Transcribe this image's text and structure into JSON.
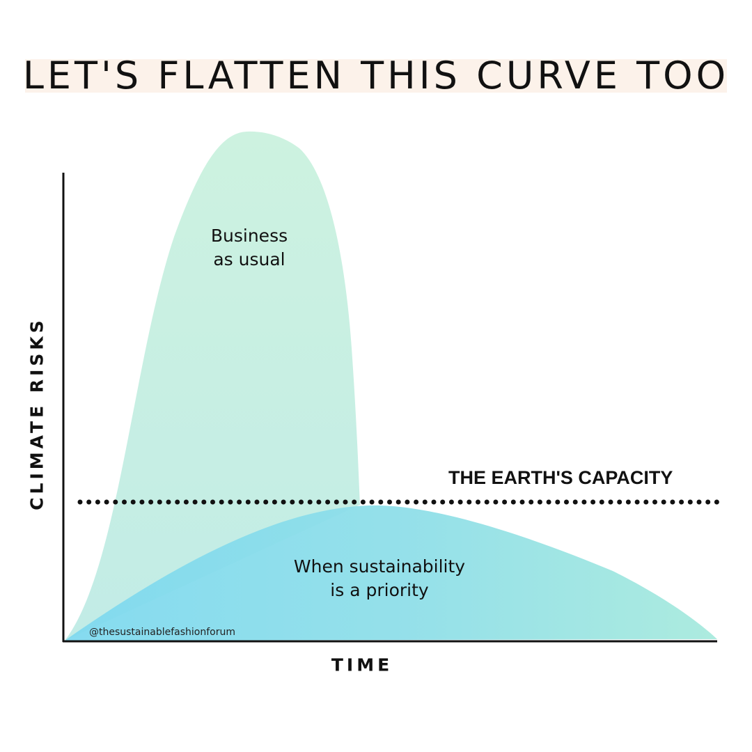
{
  "title": "LET'S FLATTEN THIS CURVE TOO",
  "axes": {
    "y_label": "CLIMATE RISKS",
    "x_label": "TIME"
  },
  "capacity_line": {
    "label": "THE EARTH'S CAPACITY"
  },
  "curves": {
    "business_as_usual": {
      "lines": [
        "Business",
        "as usual"
      ],
      "color_top": "#cdf2e0",
      "color_bottom": "#c3ede6"
    },
    "sustainability": {
      "lines": [
        "When sustainability",
        "is a priority"
      ],
      "color_left": "#7fd9ef",
      "color_right": "#a6e9df"
    }
  },
  "handle": "@thesustainablefashionforum",
  "colors": {
    "title_highlight": "#fcf2ea",
    "ink": "#111111"
  }
}
